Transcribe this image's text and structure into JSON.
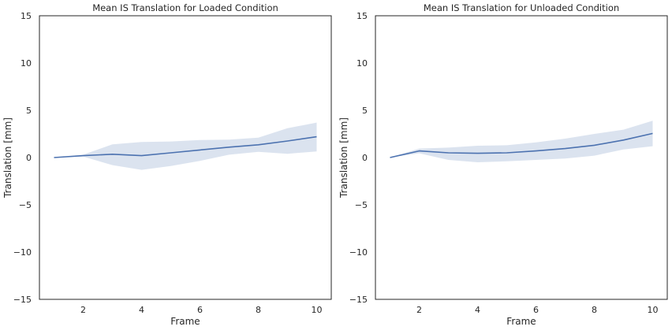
{
  "chart_data": [
    {
      "type": "line",
      "title": "Mean IS Translation for Loaded Condition",
      "xlabel": "Frame",
      "ylabel": "Translation [mm]",
      "xlim": [
        0.5,
        10.5
      ],
      "ylim": [
        -15,
        15
      ],
      "xticks": [
        2,
        4,
        6,
        8,
        10
      ],
      "yticks": [
        -15,
        -10,
        -5,
        0,
        5,
        10,
        15
      ],
      "x": [
        1,
        2,
        3,
        4,
        5,
        6,
        7,
        8,
        9,
        10
      ],
      "series": [
        {
          "values": [
            0.0,
            0.2,
            0.35,
            0.2,
            0.5,
            0.8,
            1.1,
            1.35,
            1.75,
            2.2
          ],
          "ci_upper": [
            0.0,
            0.3,
            1.4,
            1.65,
            1.7,
            1.85,
            1.9,
            2.1,
            3.1,
            3.7
          ],
          "ci_lower": [
            0.0,
            0.1,
            -0.8,
            -1.3,
            -0.9,
            -0.35,
            0.3,
            0.6,
            0.4,
            0.65
          ],
          "color": "#4c72b0"
        }
      ],
      "grid": false
    },
    {
      "type": "line",
      "title": "Mean IS Translation for Unloaded Condition",
      "xlabel": "Frame",
      "ylabel": "Translation [mm]",
      "xlim": [
        0.5,
        10.5
      ],
      "ylim": [
        -15,
        15
      ],
      "xticks": [
        2,
        4,
        6,
        8,
        10
      ],
      "yticks": [
        -15,
        -10,
        -5,
        0,
        5,
        10,
        15
      ],
      "x": [
        1,
        2,
        3,
        4,
        5,
        6,
        7,
        8,
        9,
        10
      ],
      "series": [
        {
          "values": [
            0.0,
            0.7,
            0.5,
            0.45,
            0.5,
            0.7,
            0.95,
            1.3,
            1.85,
            2.55
          ],
          "ci_upper": [
            0.0,
            0.95,
            1.05,
            1.25,
            1.3,
            1.6,
            2.0,
            2.5,
            2.95,
            3.9
          ],
          "ci_lower": [
            0.0,
            0.45,
            -0.25,
            -0.5,
            -0.4,
            -0.25,
            -0.1,
            0.2,
            0.85,
            1.2
          ],
          "color": "#4c72b0"
        }
      ],
      "grid": false
    }
  ]
}
